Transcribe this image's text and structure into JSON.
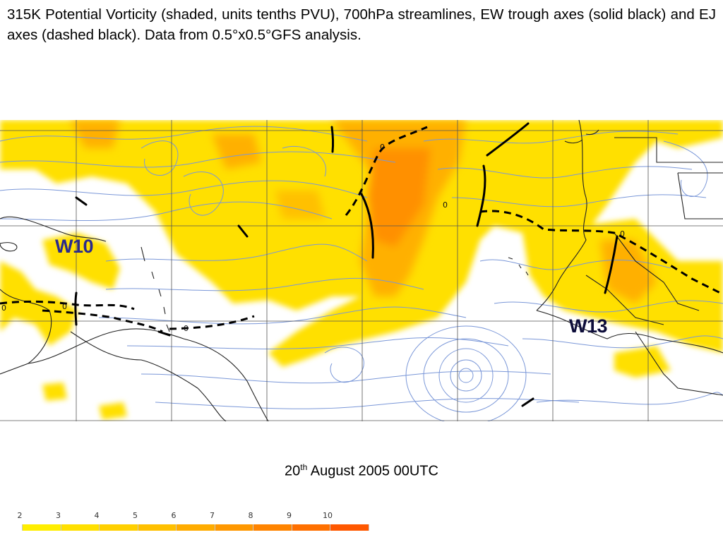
{
  "caption": "315K Potential Vorticity (shaded, units tenths PVU), 700hPa streamlines, EW trough axes (solid black) and EJ axes (dashed black). Data from 0.5°x0.5°GFS analysis.",
  "map": {
    "wave_labels": [
      "W10",
      "W13"
    ],
    "contour_label": "0"
  },
  "date": {
    "day": "20",
    "suffix": "th",
    "rest": " August 2005 00UTC"
  },
  "legend": {
    "labels": [
      "2",
      "3",
      "4",
      "5",
      "6",
      "7",
      "8",
      "9",
      "10"
    ],
    "colors": [
      "#ffffff",
      "#ffee00",
      "#ffe000",
      "#ffd000",
      "#ffc000",
      "#ffac00",
      "#ff9800",
      "#ff8400",
      "#ff7000",
      "#ff5800"
    ]
  }
}
